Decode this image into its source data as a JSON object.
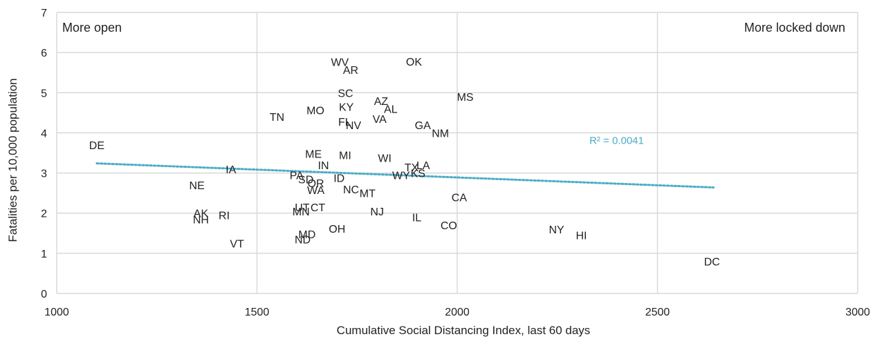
{
  "chart_data": {
    "type": "scatter",
    "xlabel": "Cumulative Social Distancing Index, last 60 days",
    "ylabel": "Fatalities per 10,000 population",
    "xlim": [
      1000,
      3000
    ],
    "ylim": [
      0,
      7
    ],
    "xticks": [
      "1000",
      "1500",
      "2000",
      "2500",
      "3000"
    ],
    "yticks": [
      "0",
      "1",
      "2",
      "3",
      "4",
      "5",
      "6",
      "7"
    ],
    "grid": "vertical and horizontal major gridlines",
    "annotations": {
      "left": "More open",
      "right": "More locked down"
    },
    "trendline": {
      "style": "dotted linear",
      "color": "#4bacc6",
      "label": "R² = 0.0041",
      "x": [
        1100,
        2640
      ],
      "y": [
        3.24,
        2.64
      ]
    },
    "points": [
      {
        "label": "DE",
        "x": 1100,
        "y": 3.7
      },
      {
        "label": "IA",
        "x": 1435,
        "y": 3.1
      },
      {
        "label": "NE",
        "x": 1350,
        "y": 2.7
      },
      {
        "label": "AK",
        "x": 1360,
        "y": 2.0
      },
      {
        "label": "NH",
        "x": 1360,
        "y": 1.85
      },
      {
        "label": "RI",
        "x": 1418,
        "y": 1.95
      },
      {
        "label": "VT",
        "x": 1450,
        "y": 1.25
      },
      {
        "label": "TN",
        "x": 1550,
        "y": 4.4
      },
      {
        "label": "MO",
        "x": 1646,
        "y": 4.57
      },
      {
        "label": "WV",
        "x": 1707,
        "y": 5.77
      },
      {
        "label": "AR",
        "x": 1734,
        "y": 5.57
      },
      {
        "label": "OK",
        "x": 1892,
        "y": 5.78
      },
      {
        "label": "SC",
        "x": 1721,
        "y": 5.0
      },
      {
        "label": "KY",
        "x": 1723,
        "y": 4.65
      },
      {
        "label": "AZ",
        "x": 1810,
        "y": 4.8
      },
      {
        "label": "AL",
        "x": 1834,
        "y": 4.6
      },
      {
        "label": "VA",
        "x": 1806,
        "y": 4.35
      },
      {
        "label": "FL",
        "x": 1719,
        "y": 4.28
      },
      {
        "label": "NV",
        "x": 1741,
        "y": 4.2
      },
      {
        "label": "GA",
        "x": 1914,
        "y": 4.2
      },
      {
        "label": "NM",
        "x": 1958,
        "y": 4.0
      },
      {
        "label": "MS",
        "x": 2020,
        "y": 4.9
      },
      {
        "label": "ME",
        "x": 1641,
        "y": 3.48
      },
      {
        "label": "MI",
        "x": 1720,
        "y": 3.45
      },
      {
        "label": "WI",
        "x": 1819,
        "y": 3.38
      },
      {
        "label": "IN",
        "x": 1666,
        "y": 3.2
      },
      {
        "label": "TX",
        "x": 1886,
        "y": 3.15
      },
      {
        "label": "LA",
        "x": 1915,
        "y": 3.2
      },
      {
        "label": "KS",
        "x": 1902,
        "y": 3.0
      },
      {
        "label": "WY",
        "x": 1860,
        "y": 2.95
      },
      {
        "label": "PA",
        "x": 1599,
        "y": 2.95
      },
      {
        "label": "SD",
        "x": 1622,
        "y": 2.85
      },
      {
        "label": "OR",
        "x": 1647,
        "y": 2.75
      },
      {
        "label": "ID",
        "x": 1705,
        "y": 2.88
      },
      {
        "label": "WA",
        "x": 1647,
        "y": 2.58
      },
      {
        "label": "NC",
        "x": 1735,
        "y": 2.6
      },
      {
        "label": "MT",
        "x": 1776,
        "y": 2.5
      },
      {
        "label": "CA",
        "x": 2005,
        "y": 2.4
      },
      {
        "label": "UT",
        "x": 1613,
        "y": 2.15
      },
      {
        "label": "MN",
        "x": 1610,
        "y": 2.05
      },
      {
        "label": "CT",
        "x": 1652,
        "y": 2.15
      },
      {
        "label": "NJ",
        "x": 1800,
        "y": 2.05
      },
      {
        "label": "IL",
        "x": 1899,
        "y": 1.9
      },
      {
        "label": "CO",
        "x": 1979,
        "y": 1.7
      },
      {
        "label": "OH",
        "x": 1700,
        "y": 1.62
      },
      {
        "label": "MD",
        "x": 1625,
        "y": 1.48
      },
      {
        "label": "ND",
        "x": 1614,
        "y": 1.35
      },
      {
        "label": "NY",
        "x": 2248,
        "y": 1.6
      },
      {
        "label": "HI",
        "x": 2310,
        "y": 1.45
      },
      {
        "label": "DC",
        "x": 2636,
        "y": 0.8
      }
    ]
  }
}
